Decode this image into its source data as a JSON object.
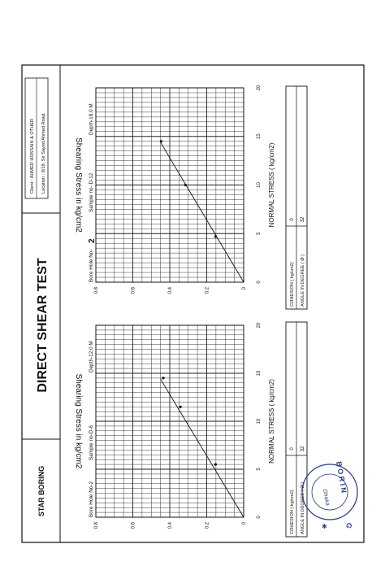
{
  "header": {
    "company": "STAR BORING",
    "title": "DIRECT SHEAR TEST",
    "client": "Client   : AHMED HOSSAIN & OTHER",
    "location": "Location : 8/18, Sir Sayed Ahmed Road."
  },
  "stamp": {
    "top_text": "B O R I N",
    "side_text": "G",
    "city": "Dhaka"
  },
  "chart_data": [
    {
      "type": "scatter",
      "bore_hole": "Bore Hole No-2",
      "sample": "Sample no-D-8",
      "depth": "Depth-12.0 M",
      "xlabel": "NORMAL STRESS ( kg/cm2)",
      "ylabel": "Shearing Stress in kg/cm2",
      "xlim": [
        0,
        20
      ],
      "ylim": [
        0,
        0.8
      ],
      "x_ticks": [
        "0",
        "5",
        "10",
        "15",
        "20"
      ],
      "y_ticks": [
        "0",
        "0.2",
        "0.4",
        "0.6",
        "0.8"
      ],
      "points": [
        {
          "x": 5.5,
          "y": 0.152
        },
        {
          "x": 11.5,
          "y": 0.342
        },
        {
          "x": 14.5,
          "y": 0.435
        }
      ],
      "fit_line": {
        "from": [
          0,
          0
        ],
        "to": [
          14.4,
          0.45
        ]
      },
      "grid": true,
      "results": [
        {
          "label": "COHESION ( kg/cm2)",
          "value": "0"
        },
        {
          "label": "ANGLE IN DEGREE ( Ø )",
          "value": "32"
        }
      ]
    },
    {
      "type": "scatter",
      "bore_hole": "Bore Hole No-",
      "bore_hole_number": "2",
      "sample": "Sample no- D-12",
      "depth": "Depth-18.0 M",
      "xlabel": "NORMAL STRESS ( kg/cm2)",
      "ylabel": "Shearing Stress in kg/cm2",
      "xlim": [
        0,
        20
      ],
      "ylim": [
        0,
        0.8
      ],
      "x_ticks": [
        "0",
        "5",
        "10",
        "15",
        "20"
      ],
      "y_ticks": [
        "0",
        "0.2",
        "0.4",
        "0.6",
        "0.8"
      ],
      "points": [
        {
          "x": 4.7,
          "y": 0.152
        },
        {
          "x": 10.0,
          "y": 0.315
        },
        {
          "x": 14.5,
          "y": 0.447
        }
      ],
      "fit_line": {
        "from": [
          0,
          0
        ],
        "to": [
          14.4,
          0.45
        ]
      },
      "grid": true,
      "results": [
        {
          "label": "COHESION ( kg/cm2)",
          "value": "0"
        },
        {
          "label": "ANGLE IN DEGREE ( Ø )",
          "value": "32"
        }
      ]
    }
  ]
}
